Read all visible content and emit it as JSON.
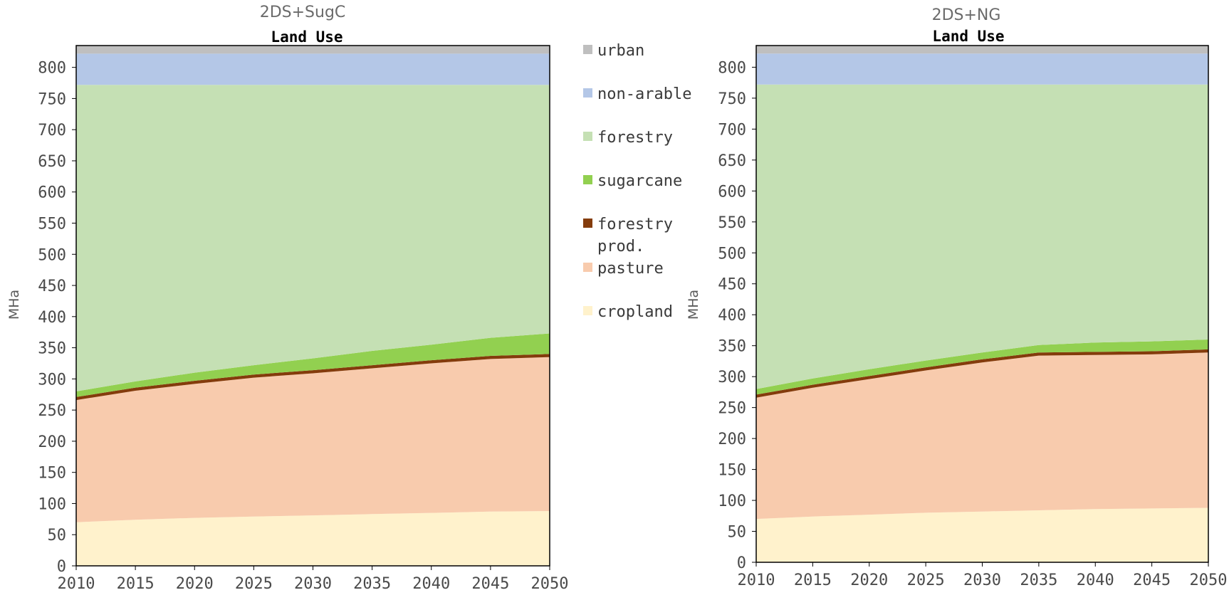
{
  "figure": {
    "legend": [
      {
        "key": "urban",
        "label": "urban",
        "color": "#bfbfbf"
      },
      {
        "key": "non_arable",
        "label": "non-arable",
        "color": "#b4c7e7"
      },
      {
        "key": "forestry",
        "label": "forestry",
        "color": "#c5e0b4"
      },
      {
        "key": "sugarcane",
        "label": "sugarcane",
        "color": "#92d050"
      },
      {
        "key": "forestry_prod",
        "label": "forestry prod.",
        "color": "#843c0c"
      },
      {
        "key": "pasture",
        "label": "pasture",
        "color": "#f8cbad"
      },
      {
        "key": "cropland",
        "label": "cropland",
        "color": "#fff2cc"
      }
    ]
  },
  "chart_data": [
    {
      "type": "area",
      "stacked": true,
      "suptitle": "2DS+SugC",
      "title": "Land Use",
      "xlabel": "",
      "ylabel": "MHa",
      "x": [
        2010,
        2015,
        2020,
        2025,
        2030,
        2035,
        2040,
        2045,
        2050
      ],
      "ylim": [
        0,
        835
      ],
      "yticks": [
        0,
        50,
        100,
        150,
        200,
        250,
        300,
        350,
        400,
        450,
        500,
        550,
        600,
        650,
        700,
        750,
        800
      ],
      "grid": false,
      "series": [
        {
          "name": "cropland",
          "values": [
            70,
            74,
            77,
            79,
            81,
            83,
            85,
            87,
            88
          ]
        },
        {
          "name": "pasture",
          "values": [
            196,
            207,
            215,
            223,
            228,
            234,
            240,
            245,
            247
          ]
        },
        {
          "name": "forestry prod.",
          "values": [
            5,
            5,
            5,
            5,
            5,
            5,
            5,
            5,
            5
          ]
        },
        {
          "name": "sugarcane",
          "values": [
            9,
            10,
            13,
            15,
            19,
            23,
            25,
            29,
            33
          ]
        },
        {
          "name": "forestry",
          "values": [
            492,
            476,
            462,
            450,
            439,
            427,
            417,
            406,
            399
          ]
        },
        {
          "name": "non-arable",
          "values": [
            50,
            50,
            50,
            50,
            50,
            50,
            50,
            50,
            50
          ]
        },
        {
          "name": "urban",
          "values": [
            13,
            13,
            13,
            13,
            13,
            13,
            13,
            13,
            13
          ]
        }
      ]
    },
    {
      "type": "area",
      "stacked": true,
      "suptitle": "2DS+NG",
      "title": "Land Use",
      "xlabel": "",
      "ylabel": "MHa",
      "x": [
        2010,
        2015,
        2020,
        2025,
        2030,
        2035,
        2040,
        2045,
        2050
      ],
      "ylim": [
        0,
        835
      ],
      "yticks": [
        0,
        50,
        100,
        150,
        200,
        250,
        300,
        350,
        400,
        450,
        500,
        550,
        600,
        650,
        700,
        750,
        800
      ],
      "grid": false,
      "series": [
        {
          "name": "cropland",
          "values": [
            70,
            74,
            77,
            80,
            82,
            84,
            86,
            87,
            88
          ]
        },
        {
          "name": "pasture",
          "values": [
            196,
            208,
            219,
            230,
            241,
            250,
            249,
            249,
            251
          ]
        },
        {
          "name": "forestry prod.",
          "values": [
            5,
            5,
            5,
            5,
            5,
            5,
            5,
            5,
            5
          ]
        },
        {
          "name": "sugarcane",
          "values": [
            9,
            10,
            11,
            11,
            11,
            12,
            15,
            16,
            16
          ]
        },
        {
          "name": "forestry",
          "values": [
            492,
            475,
            460,
            446,
            433,
            421,
            417,
            415,
            412
          ]
        },
        {
          "name": "non-arable",
          "values": [
            50,
            50,
            50,
            50,
            50,
            50,
            50,
            50,
            50
          ]
        },
        {
          "name": "urban",
          "values": [
            13,
            13,
            13,
            13,
            13,
            13,
            13,
            13,
            13
          ]
        }
      ]
    }
  ]
}
